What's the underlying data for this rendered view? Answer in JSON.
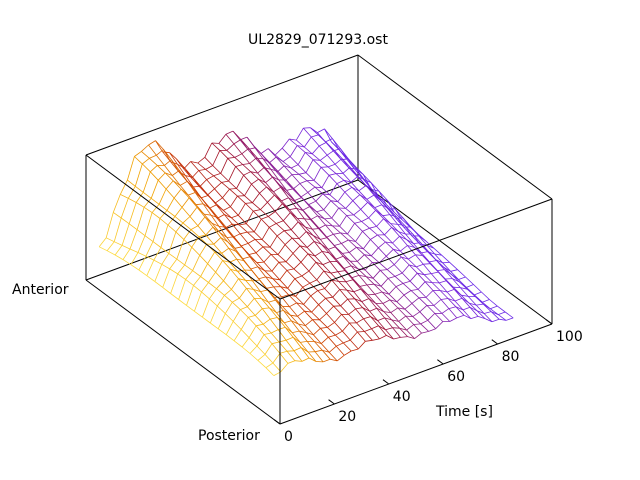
{
  "chart_data": {
    "type": "surface",
    "title": "UL2829_071293.ost",
    "xlabel": "Time [s]",
    "y_labels": {
      "start": "Posterior",
      "end": "Anterior"
    },
    "xlim": [
      0,
      100
    ],
    "xticks": [
      0,
      20,
      40,
      60,
      80,
      100
    ],
    "xtick_labels": [
      "0",
      "20",
      "40",
      "60",
      "80",
      "100"
    ],
    "zlim": [
      0,
      1
    ],
    "grid": false,
    "legend": "none",
    "colormap": [
      "#ffe44a",
      "#f0a000",
      "#c83200",
      "#a0102a",
      "#8c1f8c",
      "#7a24d6",
      "#6a28e6"
    ],
    "ridges": [
      {
        "t": 8,
        "amplitude": 0.98
      },
      {
        "t": 38,
        "amplitude": 0.8
      },
      {
        "t": 68,
        "amplitude": 0.62
      }
    ],
    "grid_size": {
      "time_samples": 34,
      "position_samples": 22
    }
  }
}
